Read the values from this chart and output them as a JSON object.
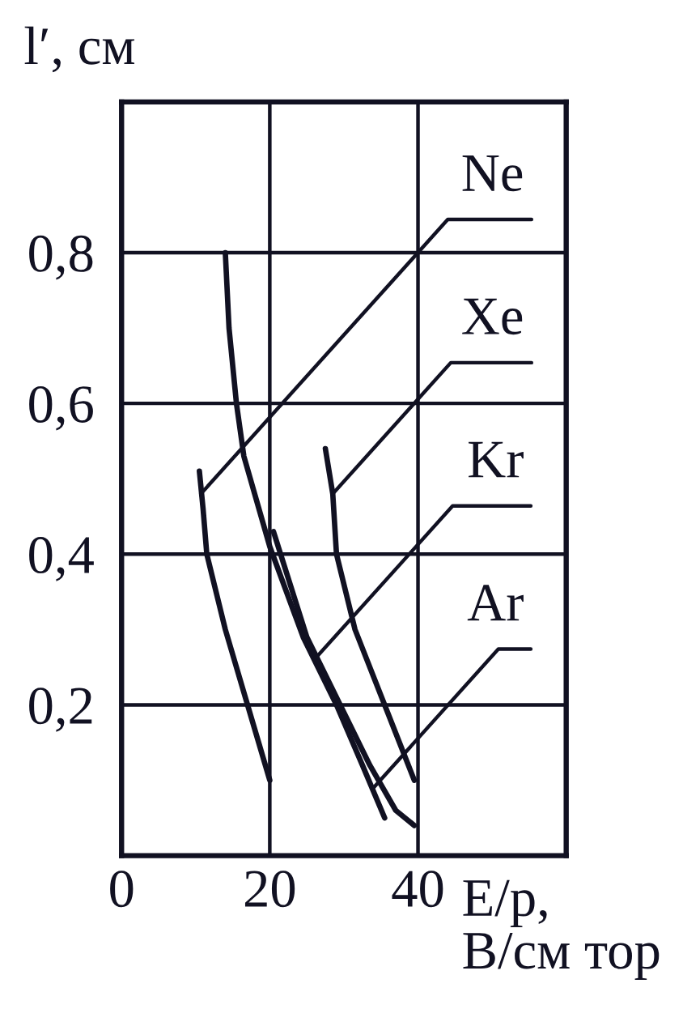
{
  "chart_data": {
    "type": "line",
    "xlabel": "E/p,\nВ/см тор",
    "ylabel": "l′, см",
    "xlim": [
      0,
      60
    ],
    "ylim": [
      0,
      1
    ],
    "xticks": [
      0,
      20,
      40
    ],
    "yticks": [
      {
        "value": 0.2,
        "label": "0,2"
      },
      {
        "value": 0.4,
        "label": "0,4"
      },
      {
        "value": 0.6,
        "label": "0,6"
      },
      {
        "value": 0.8,
        "label": "0,8"
      }
    ],
    "grid": true,
    "series": [
      {
        "color": "#111122",
        "x": [
          10.5,
          11,
          11.5,
          14,
          17,
          18.5,
          20
        ],
        "values": [
          0.51,
          0.46,
          0.4,
          0.3,
          0.2,
          0.15,
          0.1
        ]
      },
      {
        "color": "#111122",
        "x": [
          14,
          14.5,
          15.5,
          16.5,
          20,
          24.5,
          29,
          32.5,
          35.5
        ],
        "values": [
          0.8,
          0.7,
          0.6,
          0.53,
          0.41,
          0.29,
          0.2,
          0.12,
          0.05
        ]
      },
      {
        "color": "#111122",
        "x": [
          20.5,
          25,
          29.5,
          33.5,
          37,
          39.5
        ],
        "values": [
          0.43,
          0.29,
          0.2,
          0.12,
          0.06,
          0.04
        ]
      },
      {
        "color": "#111122",
        "x": [
          27.5,
          28.5,
          29,
          31.5,
          35.5,
          37.5,
          39.5
        ],
        "values": [
          0.54,
          0.48,
          0.4,
          0.3,
          0.2,
          0.15,
          0.1
        ]
      }
    ],
    "annotations": [
      {
        "text": "Ne",
        "x": 10.7,
        "y": 0.48
      },
      {
        "text": "Xe",
        "x": 28.5,
        "y": 0.48
      },
      {
        "text": "Kr",
        "x": 26,
        "y": 0.26
      },
      {
        "text": "Ar",
        "x": 34,
        "y": 0.09
      }
    ]
  }
}
